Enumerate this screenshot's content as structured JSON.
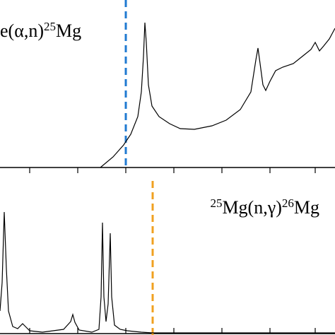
{
  "chart_data": [
    {
      "type": "line",
      "label_parts": [
        "e(α,n)",
        "25",
        "Mg"
      ],
      "x": [
        142,
        160,
        175,
        185,
        195,
        200,
        203,
        205,
        207,
        210,
        215,
        225,
        240,
        255,
        275,
        300,
        320,
        340,
        355,
        362,
        365,
        368,
        372,
        376,
        382,
        390,
        400,
        415,
        430,
        440,
        446,
        452,
        458,
        466,
        474
      ],
      "values": [
        0,
        15,
        32,
        47,
        72,
        107,
        157,
        205,
        177,
        117,
        87,
        72,
        62,
        55,
        54,
        59,
        67,
        82,
        107,
        152,
        169,
        147,
        117,
        109,
        122,
        137,
        142,
        147,
        159,
        167,
        177,
        165,
        172,
        182,
        197
      ],
      "color": "#000000",
      "xlim": [
        0,
        474
      ],
      "ylim": [
        0,
        237
      ],
      "xticks": [
        42,
        110,
        178,
        246,
        314,
        382,
        446
      ],
      "vline": {
        "x": 178,
        "color": "#1f7ad1"
      }
    },
    {
      "type": "line",
      "label_parts": [
        "25",
        "Mg(n,γ)",
        "26",
        "Mg"
      ],
      "x": [
        0,
        3,
        6,
        9,
        12,
        18,
        25,
        32,
        36,
        42,
        60,
        90,
        100,
        103,
        106,
        112,
        130,
        140,
        143,
        145,
        147,
        150,
        153,
        156,
        158,
        162,
        170,
        180,
        200,
        216,
        240,
        474
      ],
      "values": [
        32,
        72,
        172,
        92,
        32,
        10,
        7,
        14,
        10,
        4,
        2,
        6,
        17,
        27,
        16,
        5,
        2,
        6,
        52,
        157,
        52,
        17,
        42,
        142,
        52,
        12,
        6,
        4,
        2,
        1,
        1,
        1
      ],
      "color": "#000000",
      "xlim": [
        0,
        474
      ],
      "ylim": [
        0,
        216
      ],
      "xticks": [
        42,
        110,
        178,
        246,
        314,
        382,
        446
      ],
      "vline": {
        "x": 216,
        "color": "#f0a020"
      }
    }
  ]
}
